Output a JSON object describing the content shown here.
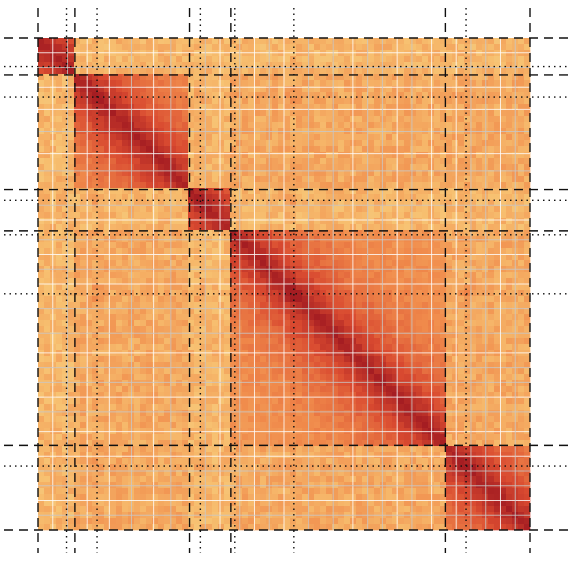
{
  "figure": {
    "kind": "hic-contact-map",
    "background": "#ffffff",
    "map_colors": {
      "low": "#f2e2a0",
      "mid_low": "#f7c070",
      "mid": "#f08a4b",
      "high": "#d94a30",
      "diag": "#a51d22",
      "grid_line": "#c8c8c8",
      "boundary": "#111111"
    }
  },
  "chart_data": {
    "type": "heatmap",
    "title": "",
    "xlabel": "",
    "ylabel": "",
    "blocks": [
      {
        "id": "b1",
        "start": 0.0,
        "end": 0.075
      },
      {
        "id": "b2",
        "start": 0.075,
        "end": 0.308
      },
      {
        "id": "b3",
        "start": 0.308,
        "end": 0.392
      },
      {
        "id": "b4",
        "start": 0.392,
        "end": 0.828
      },
      {
        "id": "b5",
        "start": 0.828,
        "end": 1.0
      }
    ],
    "self_contact_blocks": [
      {
        "id": "d1",
        "start": 0.0,
        "end": 0.058
      },
      {
        "id": "d2",
        "start": 0.075,
        "end": 0.308
      },
      {
        "id": "d3",
        "start": 0.308,
        "end": 0.392
      },
      {
        "id": "d4",
        "start": 0.392,
        "end": 0.828
      },
      {
        "id": "d5",
        "start": 0.828,
        "end": 1.0
      }
    ],
    "focal_points": [
      0.12,
      0.33,
      0.52,
      0.87
    ]
  }
}
